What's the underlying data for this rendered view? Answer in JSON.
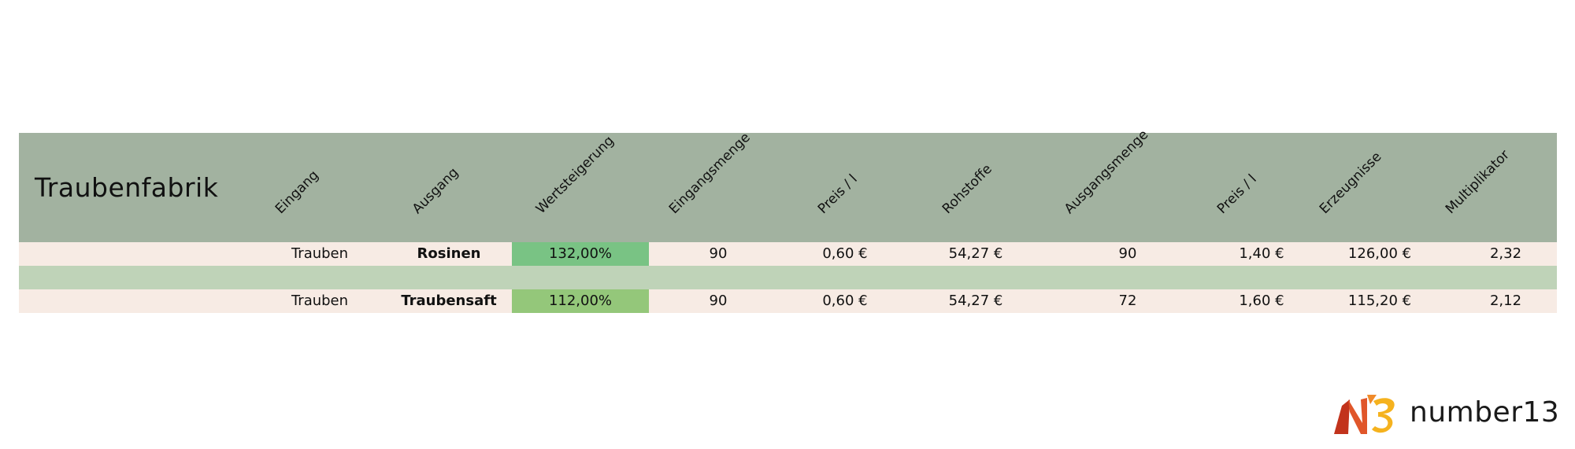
{
  "title": "Traubenfabrik",
  "columns": [
    "Eingang",
    "Ausgang",
    "Wertsteigerung",
    "Eingangsmenge",
    "Preis / l",
    "Rohstoffe",
    "Ausgangsmenge",
    "Preis / l",
    "Erzeugnisse",
    "Multiplikator"
  ],
  "rows": [
    {
      "eingang": "Trauben",
      "ausgang": "Rosinen",
      "wertsteigerung": "132,00%",
      "wertsteigerung_color": "#79c384",
      "eingangsmenge": "90",
      "preis_ein": "0,60 €",
      "rohstoffe": "54,27 €",
      "ausgangsmenge": "90",
      "preis_aus": "1,40 €",
      "erzeugnisse": "126,00 €",
      "multiplikator": "2,32"
    },
    {
      "eingang": "Trauben",
      "ausgang": "Traubensaft",
      "wertsteigerung": "112,00%",
      "wertsteigerung_color": "#94c77a",
      "eingangsmenge": "90",
      "preis_ein": "0,60 €",
      "rohstoffe": "54,27 €",
      "ausgangsmenge": "72",
      "preis_aus": "1,60 €",
      "erzeugnisse": "115,20 €",
      "multiplikator": "2,12"
    }
  ],
  "logo": {
    "text": "number13",
    "mark_icon": "n13-logo-icon"
  },
  "colors": {
    "header": "#a2b2a0",
    "row": "#f7ebe4",
    "spacer": "#bfd3b8"
  }
}
